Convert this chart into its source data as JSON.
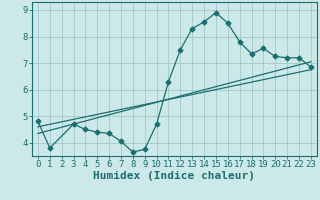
{
  "xlabel": "Humidex (Indice chaleur)",
  "background_color": "#cde8e8",
  "grid_color": "#a0c8c8",
  "line_color": "#1a7070",
  "xlim": [
    -0.5,
    23.5
  ],
  "ylim": [
    3.5,
    9.3
  ],
  "xticks": [
    0,
    1,
    2,
    3,
    4,
    5,
    6,
    7,
    8,
    9,
    10,
    11,
    12,
    13,
    14,
    15,
    16,
    17,
    18,
    19,
    20,
    21,
    22,
    23
  ],
  "yticks": [
    4,
    5,
    6,
    7,
    8,
    9
  ],
  "curve1_x": [
    0,
    1,
    3,
    4,
    5,
    6,
    7,
    8,
    9,
    10,
    11,
    12,
    13,
    14,
    15,
    16,
    17,
    18,
    19,
    20,
    21,
    22,
    23
  ],
  "curve1_y": [
    4.8,
    3.8,
    4.7,
    4.5,
    4.4,
    4.35,
    4.05,
    3.65,
    3.75,
    4.7,
    6.3,
    7.5,
    8.3,
    8.55,
    8.9,
    8.5,
    7.8,
    7.35,
    7.55,
    7.25,
    7.2,
    7.2,
    6.85
  ],
  "curve2_x": [
    0,
    23
  ],
  "curve2_y": [
    4.35,
    7.05
  ],
  "curve3_x": [
    0,
    23
  ],
  "curve3_y": [
    4.6,
    6.75
  ],
  "tick_fontsize": 6.5,
  "xlabel_fontsize": 8
}
